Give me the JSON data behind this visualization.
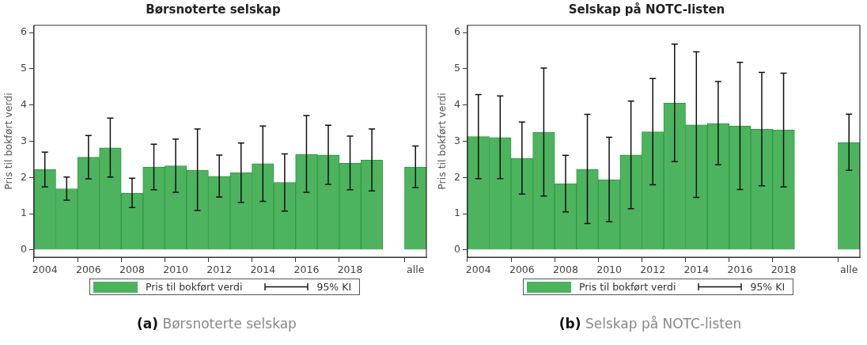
{
  "chart_data": [
    {
      "type": "bar",
      "title": "Børsnoterte selskap",
      "ylabel": "Pris til bokført verdi",
      "legend": "bottom",
      "grid": false,
      "categories": [
        "2004",
        null,
        "2006",
        null,
        "2008",
        null,
        "2010",
        null,
        "2012",
        null,
        "2014",
        null,
        "2016",
        null,
        "2018",
        null,
        null,
        "alle"
      ],
      "ylim": [
        -0.2,
        6.2
      ],
      "yticks": [
        0,
        1,
        2,
        3,
        4,
        5,
        6
      ],
      "series": [
        {
          "name": "Pris til bokført verdi",
          "color": "#4db35e",
          "values": [
            2.22,
            1.69,
            2.56,
            2.82,
            1.56,
            2.29,
            2.32,
            2.2,
            2.03,
            2.13,
            2.38,
            1.86,
            2.64,
            2.62,
            2.39,
            2.48,
            null,
            2.29
          ],
          "errors": [
            [
              1.74,
              2.7
            ],
            [
              1.37,
              2.01
            ],
            [
              1.96,
              3.16
            ],
            [
              2.01,
              3.64
            ],
            [
              1.17,
              1.98
            ],
            [
              1.66,
              2.92
            ],
            [
              1.59,
              3.06
            ],
            [
              1.09,
              3.34
            ],
            [
              1.46,
              2.62
            ],
            [
              1.31,
              2.95
            ],
            [
              1.34,
              3.42
            ],
            [
              1.07,
              2.65
            ],
            [
              1.59,
              3.71
            ],
            [
              1.81,
              3.44
            ],
            [
              1.66,
              3.14
            ],
            [
              1.63,
              3.34
            ],
            null,
            [
              1.72,
              2.87
            ]
          ]
        }
      ],
      "annotations": [
        "95% KI",
        "(a) Børsnoterte selskap"
      ]
    },
    {
      "type": "bar",
      "title": "Selskap på NOTC-listen",
      "ylabel": "Pris til bokført verdi",
      "legend": "bottom",
      "grid": false,
      "categories": [
        "2004",
        null,
        "2006",
        null,
        "2008",
        null,
        "2010",
        null,
        "2012",
        null,
        "2014",
        null,
        "2016",
        null,
        "2018",
        null,
        null,
        "alle"
      ],
      "ylim": [
        -0.2,
        6.2
      ],
      "yticks": [
        0,
        1,
        2,
        3,
        4,
        5,
        6
      ],
      "series": [
        {
          "name": "Pris til bokført verdi",
          "color": "#4db35e",
          "values": [
            3.13,
            3.1,
            2.53,
            3.25,
            1.83,
            2.23,
            1.94,
            2.62,
            3.26,
            4.05,
            3.45,
            3.49,
            3.42,
            3.33,
            3.31,
            null,
            null,
            2.96
          ],
          "errors": [
            [
              1.97,
              4.29
            ],
            [
              1.97,
              4.25
            ],
            [
              1.54,
              3.53
            ],
            [
              1.49,
              5.02
            ],
            [
              1.05,
              2.61
            ],
            [
              0.73,
              3.74
            ],
            [
              0.78,
              3.11
            ],
            [
              1.14,
              4.11
            ],
            [
              1.8,
              4.73
            ],
            [
              2.44,
              5.68
            ],
            [
              1.45,
              5.47
            ],
            [
              2.35,
              4.65
            ],
            [
              1.67,
              5.18
            ],
            [
              1.77,
              4.9
            ],
            [
              1.74,
              4.88
            ],
            null,
            null,
            [
              2.2,
              3.75
            ]
          ]
        }
      ],
      "annotations": [
        "95% KI",
        "(b) Selskap på NOTC-listen"
      ]
    }
  ]
}
